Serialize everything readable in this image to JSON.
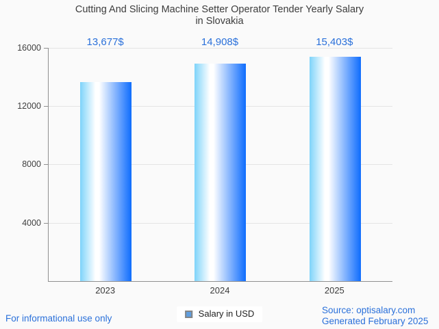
{
  "chart_data": {
    "type": "bar",
    "title": "Cutting And Slicing Machine Setter Operator Tender Yearly Salary in Slovakia",
    "title_lines": [
      "Cutting And Slicing Machine Setter Operator Tender Yearly Salary",
      "in Slovakia"
    ],
    "categories": [
      "2023",
      "2024",
      "2025"
    ],
    "values": [
      13677,
      14908,
      15403
    ],
    "value_labels": [
      "13,677$",
      "14,908$",
      "15,403$"
    ],
    "series": [
      {
        "name": "Salary in USD",
        "values": [
          13677,
          14908,
          15403
        ]
      }
    ],
    "ylim": [
      0,
      16000
    ],
    "y_ticks": [
      16000,
      12000,
      8000,
      4000
    ],
    "y_tick_labels": [
      "16000",
      "12000",
      "8000",
      "4000"
    ],
    "xlabel": "",
    "ylabel": "",
    "grid": true,
    "legend_position": "bottom"
  },
  "legend": {
    "label": "Salary in USD"
  },
  "footer": {
    "disclaimer": "For informational use only",
    "source": "Source: optisalary.com",
    "generated": "Generated February 2025"
  },
  "colors": {
    "background": "#fafafa",
    "accent_blue": "#2a70da",
    "title_gray": "#3c3c3c",
    "axis_gray": "#8f8f8f",
    "grid_gray": "#e4e4e4",
    "bar_gradient_css": "linear-gradient(90deg, #7ed3fa 0%, #ffffff 30%, #ffffff 37%, #0e6cfd 100%)",
    "legend_marker_fill": "#5f9ee0",
    "legend_marker_border": "#858585"
  }
}
